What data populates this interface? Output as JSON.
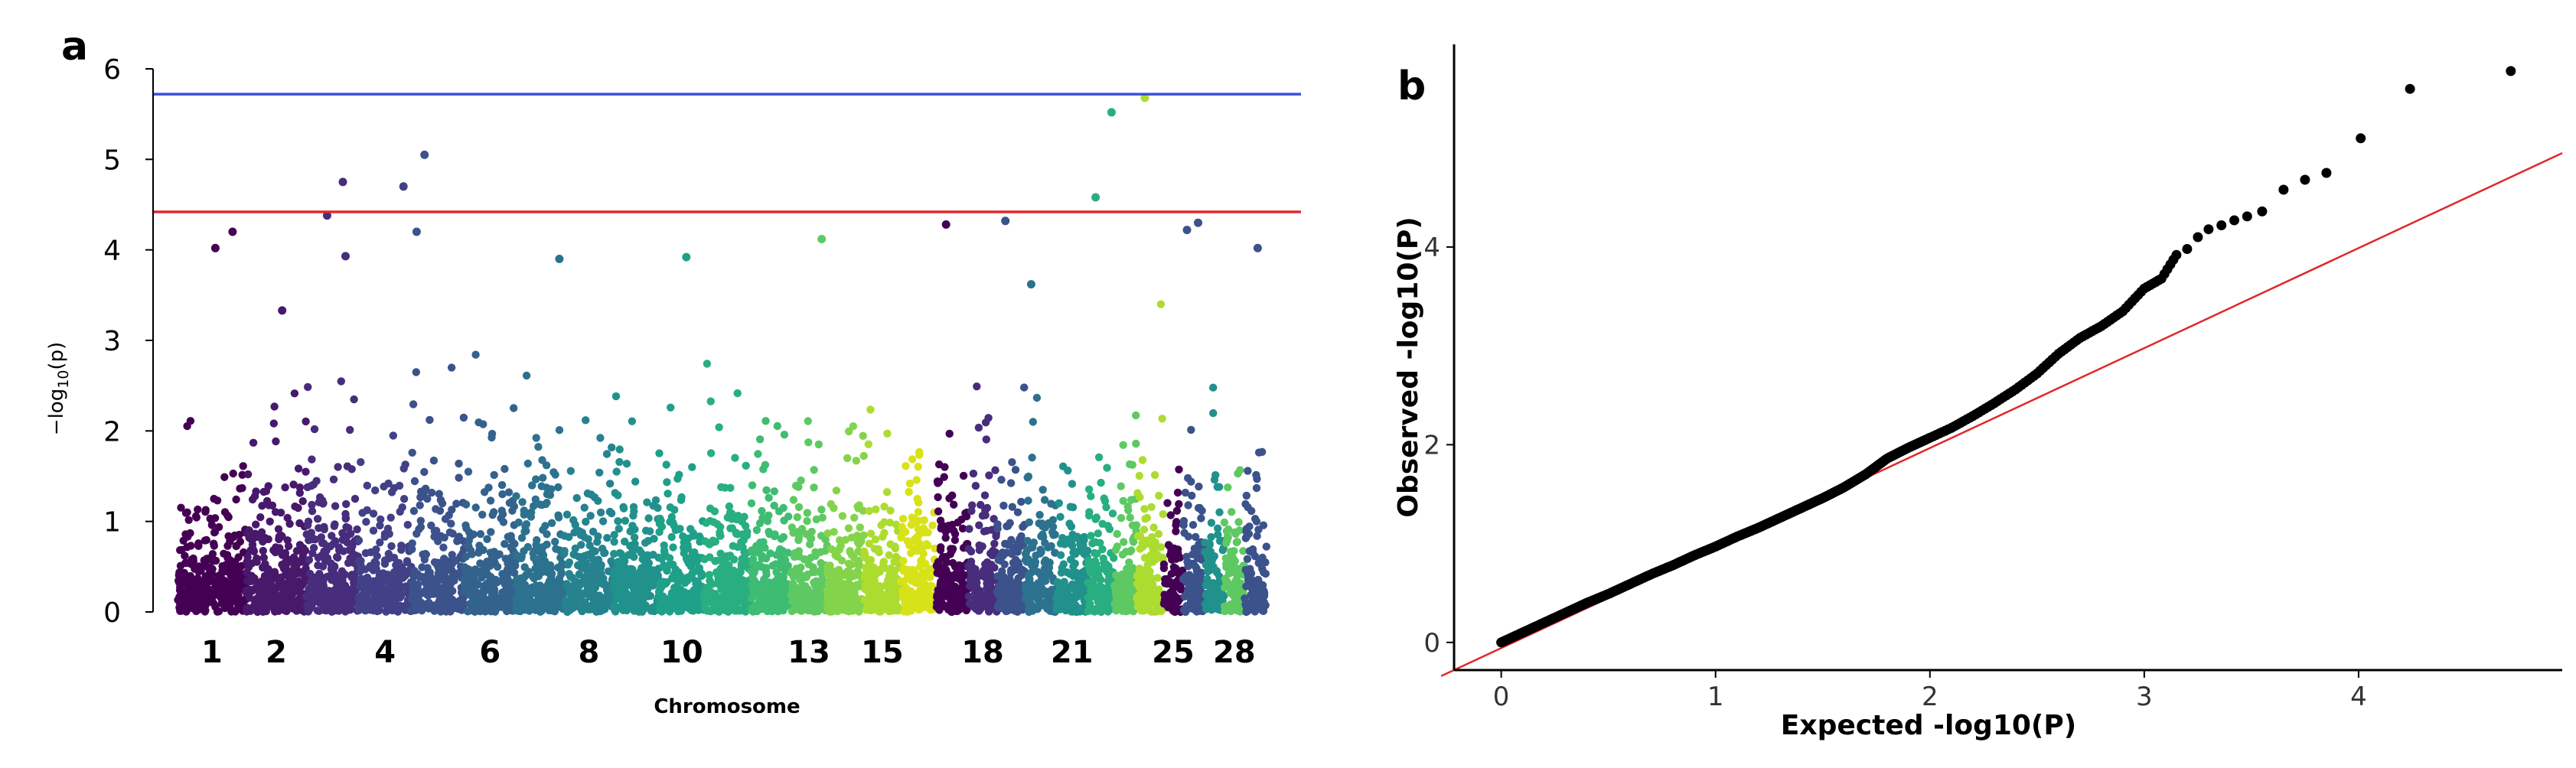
{
  "figure": {
    "panel_a_label": "a",
    "panel_b_label": "b"
  },
  "chart_data": [
    {
      "type": "scatter",
      "subtype": "manhattan",
      "title": "",
      "xlabel": "Chromosome",
      "ylabel": "−log",
      "ylabel_sub": "10",
      "ylabel_tail": "(p)",
      "ylim": [
        0,
        6
      ],
      "yticks": [
        0,
        1,
        2,
        3,
        4,
        5,
        6
      ],
      "chromosomes": [
        "1",
        "2",
        "3",
        "4",
        "5",
        "6",
        "7",
        "8",
        "9",
        "10",
        "11",
        "12",
        "13",
        "14",
        "15",
        "16",
        "17",
        "18",
        "19",
        "20",
        "21",
        "22",
        "23",
        "24",
        "25",
        "26",
        "27",
        "28",
        "29"
      ],
      "xtick_labels": [
        "1",
        "2",
        "4",
        "6",
        "8",
        "10",
        "13",
        "15",
        "18",
        "21",
        "25",
        "28"
      ],
      "xtick_chromosomes": [
        1,
        2,
        4,
        6,
        8,
        10,
        13,
        15,
        18,
        21,
        25,
        28
      ],
      "chromosome_sizes": [
        1.58,
        1.37,
        1.21,
        1.21,
        1.21,
        1.19,
        1.11,
        1.13,
        1.05,
        1.04,
        1.07,
        0.91,
        0.84,
        0.84,
        0.85,
        0.82,
        0.73,
        0.66,
        0.64,
        0.72,
        0.72,
        0.61,
        0.52,
        0.62,
        0.43,
        0.51,
        0.45,
        0.46,
        0.51
      ],
      "chromosome_colors": [
        "#440154",
        "#48186a",
        "#472d7b",
        "#424086",
        "#3b528b",
        "#33638d",
        "#2c728e",
        "#26828e",
        "#21918c",
        "#1fa088",
        "#28ae80",
        "#3fbc73",
        "#5ec962",
        "#84d44b",
        "#addc30",
        "#d8e219",
        "#440154",
        "#472d7b",
        "#3b528b",
        "#2c728e",
        "#21918c",
        "#28ae80",
        "#5ec962",
        "#addc30",
        "#440154",
        "#3b528b",
        "#21918c",
        "#5ec962",
        "#3b528b"
      ],
      "threshold_lines": [
        {
          "y": 5.72,
          "color": "#3b4fd8"
        },
        {
          "y": 4.42,
          "color": "#e0282a"
        }
      ],
      "notable_points": [
        {
          "chromosome": 1,
          "pos": 0.55,
          "y": 4.02
        },
        {
          "chromosome": 1,
          "pos": 0.8,
          "y": 4.2
        },
        {
          "chromosome": 2,
          "pos": 0.6,
          "y": 3.33
        },
        {
          "chromosome": 3,
          "pos": 0.4,
          "y": 4.38
        },
        {
          "chromosome": 3,
          "pos": 0.7,
          "y": 4.75
        },
        {
          "chromosome": 3,
          "pos": 0.75,
          "y": 3.93
        },
        {
          "chromosome": 4,
          "pos": 0.85,
          "y": 4.7
        },
        {
          "chromosome": 5,
          "pos": 0.1,
          "y": 4.2
        },
        {
          "chromosome": 5,
          "pos": 0.25,
          "y": 5.05
        },
        {
          "chromosome": 7,
          "pos": 0.9,
          "y": 3.9
        },
        {
          "chromosome": 10,
          "pos": 0.6,
          "y": 3.92
        },
        {
          "chromosome": 13,
          "pos": 0.85,
          "y": 4.12
        },
        {
          "chromosome": 17,
          "pos": 0.3,
          "y": 4.28
        },
        {
          "chromosome": 19,
          "pos": 0.3,
          "y": 4.32
        },
        {
          "chromosome": 20,
          "pos": 0.2,
          "y": 3.62
        },
        {
          "chromosome": 22,
          "pos": 0.3,
          "y": 4.58
        },
        {
          "chromosome": 22,
          "pos": 0.9,
          "y": 5.52
        },
        {
          "chromosome": 24,
          "pos": 0.3,
          "y": 5.68
        },
        {
          "chromosome": 26,
          "pos": 0.2,
          "y": 4.22
        },
        {
          "chromosome": 26,
          "pos": 0.7,
          "y": 4.3
        },
        {
          "chromosome": 29,
          "pos": 0.6,
          "y": 4.02
        }
      ]
    },
    {
      "type": "scatter",
      "subtype": "qq",
      "title": "",
      "xlabel": "Expected -log10(P)",
      "ylabel": "Observed -log10(P)",
      "xlim": [
        -0.22,
        4.95
      ],
      "ylim": [
        -0.28,
        6.05
      ],
      "xticks": [
        0,
        1,
        2,
        3,
        4
      ],
      "yticks": [
        0,
        2,
        4
      ],
      "reference_line": {
        "color": "#e0282a",
        "slope": 1,
        "intercept": 0
      },
      "points": [
        [
          0.0,
          0.0
        ],
        [
          0.1,
          0.1
        ],
        [
          0.2,
          0.2
        ],
        [
          0.3,
          0.3
        ],
        [
          0.4,
          0.4
        ],
        [
          0.5,
          0.49
        ],
        [
          0.6,
          0.59
        ],
        [
          0.7,
          0.69
        ],
        [
          0.8,
          0.78
        ],
        [
          0.9,
          0.88
        ],
        [
          1.0,
          0.97
        ],
        [
          1.1,
          1.07
        ],
        [
          1.2,
          1.16
        ],
        [
          1.3,
          1.26
        ],
        [
          1.4,
          1.36
        ],
        [
          1.5,
          1.46
        ],
        [
          1.6,
          1.57
        ],
        [
          1.7,
          1.7
        ],
        [
          1.8,
          1.86
        ],
        [
          1.9,
          1.97
        ],
        [
          2.0,
          2.07
        ],
        [
          2.1,
          2.17
        ],
        [
          2.2,
          2.29
        ],
        [
          2.3,
          2.42
        ],
        [
          2.4,
          2.56
        ],
        [
          2.5,
          2.72
        ],
        [
          2.6,
          2.92
        ],
        [
          2.7,
          3.08
        ],
        [
          2.8,
          3.2
        ],
        [
          2.9,
          3.35
        ],
        [
          3.0,
          3.58
        ],
        [
          3.08,
          3.68
        ],
        [
          3.15,
          3.92
        ],
        [
          3.2,
          3.98
        ],
        [
          3.25,
          4.1
        ],
        [
          3.3,
          4.18
        ],
        [
          3.36,
          4.22
        ],
        [
          3.42,
          4.27
        ],
        [
          3.48,
          4.31
        ],
        [
          3.55,
          4.36
        ],
        [
          3.65,
          4.58
        ],
        [
          3.75,
          4.68
        ],
        [
          3.85,
          4.75
        ],
        [
          4.01,
          5.1
        ],
        [
          4.24,
          5.6
        ],
        [
          4.71,
          5.78
        ]
      ]
    }
  ]
}
